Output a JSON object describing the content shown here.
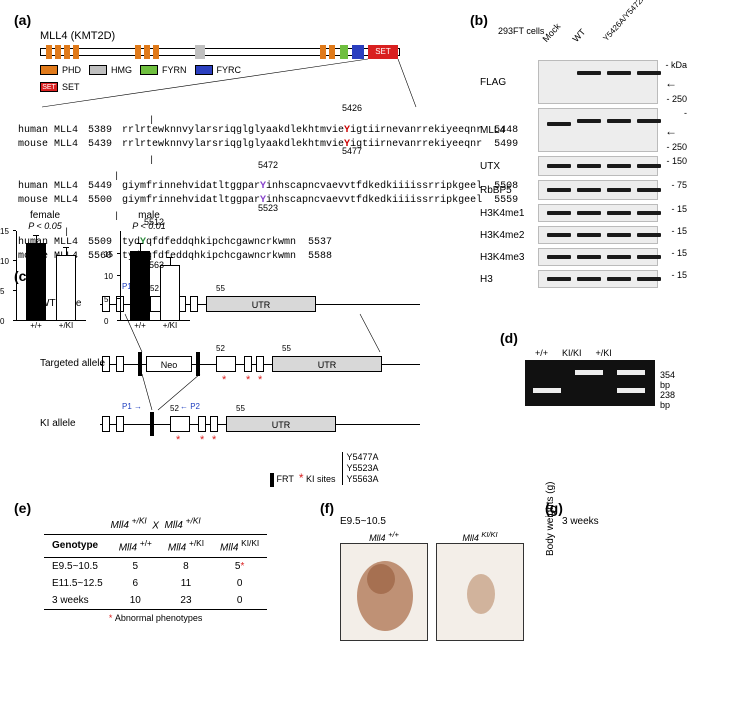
{
  "panel_labels": {
    "a": "(a)",
    "b": "(b)",
    "c": "(c)",
    "d": "(d)",
    "e": "(e)",
    "f": "(f)",
    "g": "(g)"
  },
  "a": {
    "title": "MLL4 (KMT2D)",
    "legend": {
      "phd": "PHD",
      "hmg": "HMG",
      "fyrn": "FYRN",
      "fyrc": "FYRC",
      "set": "SET"
    },
    "colors": {
      "phd": "#e07a1a",
      "hmg": "#bfbfbf",
      "fyrn": "#6fbf3f",
      "fyrc": "#2b3fbf",
      "set": "#d92020"
    },
    "seq_rows": [
      {
        "sp": "human MLL4",
        "pos": "5389",
        "seq": "rrlrtewknnvylarsriqglglyaakdlekhtmvie",
        "res": "Y",
        "tail": "igtiirnevanrrekiyeeqnr",
        "end": "5448",
        "res_class": "resY",
        "marker": "5426"
      },
      {
        "sp": "mouse MLL4",
        "pos": "5439",
        "seq": "rrlrtewknnvylarsriqglglyaakdlekhtmvie",
        "res": "Y",
        "tail": "igtiirnevanrrekiyeeqnr",
        "end": "5499",
        "res_class": "resY",
        "marker": "5477"
      },
      {
        "sp": "human MLL4",
        "pos": "5449",
        "seq": "giymfrinnehvidatltggpar",
        "res": "Y",
        "tail": "inhscapncvaevvtfdkedkiiiissrripkgeel",
        "end": "5508",
        "res_class": "resYp",
        "marker": "5472"
      },
      {
        "sp": "mouse MLL4",
        "pos": "5500",
        "seq": "giymfrinnehvidatltggpar",
        "res": "Y",
        "tail": "inhscapncvaevvtfdkedkiiiissrripkgeel",
        "end": "5559",
        "res_class": "resYp",
        "marker": "5523"
      },
      {
        "sp": "human MLL4",
        "pos": "5509",
        "seq": "tyd",
        "res": "Y",
        "tail": "qfdfeddqhkipchcgawncrkwmn",
        "end": "5537",
        "res_class": "resYg",
        "marker": "5512"
      },
      {
        "sp": "mouse MLL4",
        "pos": "5560",
        "seq": "tyd",
        "res": "Y",
        "tail": "qfdfeddqhkipchcgawncrkwmn",
        "end": "5588",
        "res_class": "resYg",
        "marker": "5563"
      }
    ]
  },
  "b": {
    "cells": "293FT cells",
    "lanes": [
      "Mock",
      "WT",
      "Y5426A/Y5472A/Y5512A"
    ],
    "rows": [
      {
        "label": "FLAG",
        "h": 44,
        "bands": [
          {
            "l": 1,
            "t": 10
          },
          {
            "l": 2,
            "t": 10
          },
          {
            "l": 3,
            "t": 10
          }
        ],
        "kda": [
          "kDa",
          "250"
        ],
        "arrow": true
      },
      {
        "label": "MLL4",
        "h": 44,
        "bands": [
          {
            "l": 0,
            "t": 13
          },
          {
            "l": 1,
            "t": 10
          },
          {
            "l": 2,
            "t": 10
          },
          {
            "l": 3,
            "t": 10
          }
        ],
        "kda": [
          "",
          "250"
        ],
        "arrow": true
      },
      {
        "label": "UTX",
        "h": 20,
        "bands": [
          {
            "l": 0,
            "t": 7
          },
          {
            "l": 1,
            "t": 7
          },
          {
            "l": 2,
            "t": 7
          },
          {
            "l": 3,
            "t": 7
          }
        ],
        "kda": [
          "150"
        ]
      },
      {
        "label": "RbBP5",
        "h": 20,
        "bands": [
          {
            "l": 0,
            "t": 7
          },
          {
            "l": 1,
            "t": 7
          },
          {
            "l": 2,
            "t": 7
          },
          {
            "l": 3,
            "t": 7
          }
        ],
        "kda": [
          "75"
        ]
      },
      {
        "label": "H3K4me1",
        "h": 18,
        "bands": [
          {
            "l": 0,
            "t": 6
          },
          {
            "l": 1,
            "t": 6
          },
          {
            "l": 2,
            "t": 6
          },
          {
            "l": 3,
            "t": 6
          }
        ],
        "kda": [
          "15"
        ]
      },
      {
        "label": "H3K4me2",
        "h": 18,
        "bands": [
          {
            "l": 0,
            "t": 6
          },
          {
            "l": 1,
            "t": 6
          },
          {
            "l": 2,
            "t": 6
          },
          {
            "l": 3,
            "t": 6
          }
        ],
        "kda": [
          "15"
        ]
      },
      {
        "label": "H3K4me3",
        "h": 18,
        "bands": [
          {
            "l": 0,
            "t": 6
          },
          {
            "l": 1,
            "t": 6
          },
          {
            "l": 2,
            "t": 6
          },
          {
            "l": 3,
            "t": 6
          }
        ],
        "kda": [
          "15"
        ]
      },
      {
        "label": "H3",
        "h": 18,
        "bands": [
          {
            "l": 0,
            "t": 6
          },
          {
            "l": 1,
            "t": 6
          },
          {
            "l": 2,
            "t": 6
          },
          {
            "l": 3,
            "t": 6
          }
        ],
        "kda": [
          "15"
        ]
      }
    ]
  },
  "c": {
    "alleles": [
      "WT allele",
      "Targeted allele",
      "KI allele"
    ],
    "primers": {
      "p1": "P1",
      "p2": "P2"
    },
    "exons": {
      "e52": "52",
      "e55": "55",
      "utr": "UTR",
      "neo": "Neo"
    },
    "legend": {
      "frt": "FRT",
      "ki": "KI sites",
      "ki_list": "Y5477A\nY5523A\nY5563A"
    },
    "star": "*"
  },
  "d": {
    "lanes": [
      "+/+",
      "KI/KI",
      "+/KI"
    ],
    "sizes": [
      "354 bp",
      "238 bp"
    ]
  },
  "e": {
    "cross": "Mll4 +/KI   X   Mll4 +/KI",
    "cols": [
      "Genotype",
      "Mll4 +/+",
      "Mll4 +/KI",
      "Mll4 KI/KI"
    ],
    "rows": [
      [
        "E9.5~10.5",
        "5",
        "8",
        "5*"
      ],
      [
        "E11.5~12.5",
        "6",
        "11",
        "0"
      ],
      [
        "3 weeks",
        "10",
        "23",
        "0"
      ]
    ],
    "footnote": "Abnormal phenotypes",
    "star_color": "#d92020"
  },
  "f": {
    "stage": "E9.5~10.5",
    "labels": [
      "Mll4 +/+",
      "Mll4 KI/KI"
    ]
  },
  "g": {
    "title": "3 weeks",
    "ylabel": "Body weights (g)",
    "groups": [
      {
        "name": "female",
        "p": "P < 0.05",
        "ymax": 15,
        "bars": [
          {
            "label": "+/+",
            "v": 13,
            "col": "#000"
          },
          {
            "label": "+/KI",
            "v": 11,
            "col": "#fff"
          }
        ]
      },
      {
        "name": "male",
        "p": "P < 0.01",
        "ymax": 20,
        "ticks": [
          0,
          5,
          10,
          15
        ],
        "bars": [
          {
            "label": "+/+",
            "v": 15.5,
            "col": "#000"
          },
          {
            "label": "+/KI",
            "v": 12.5,
            "col": "#fff"
          }
        ]
      }
    ]
  }
}
